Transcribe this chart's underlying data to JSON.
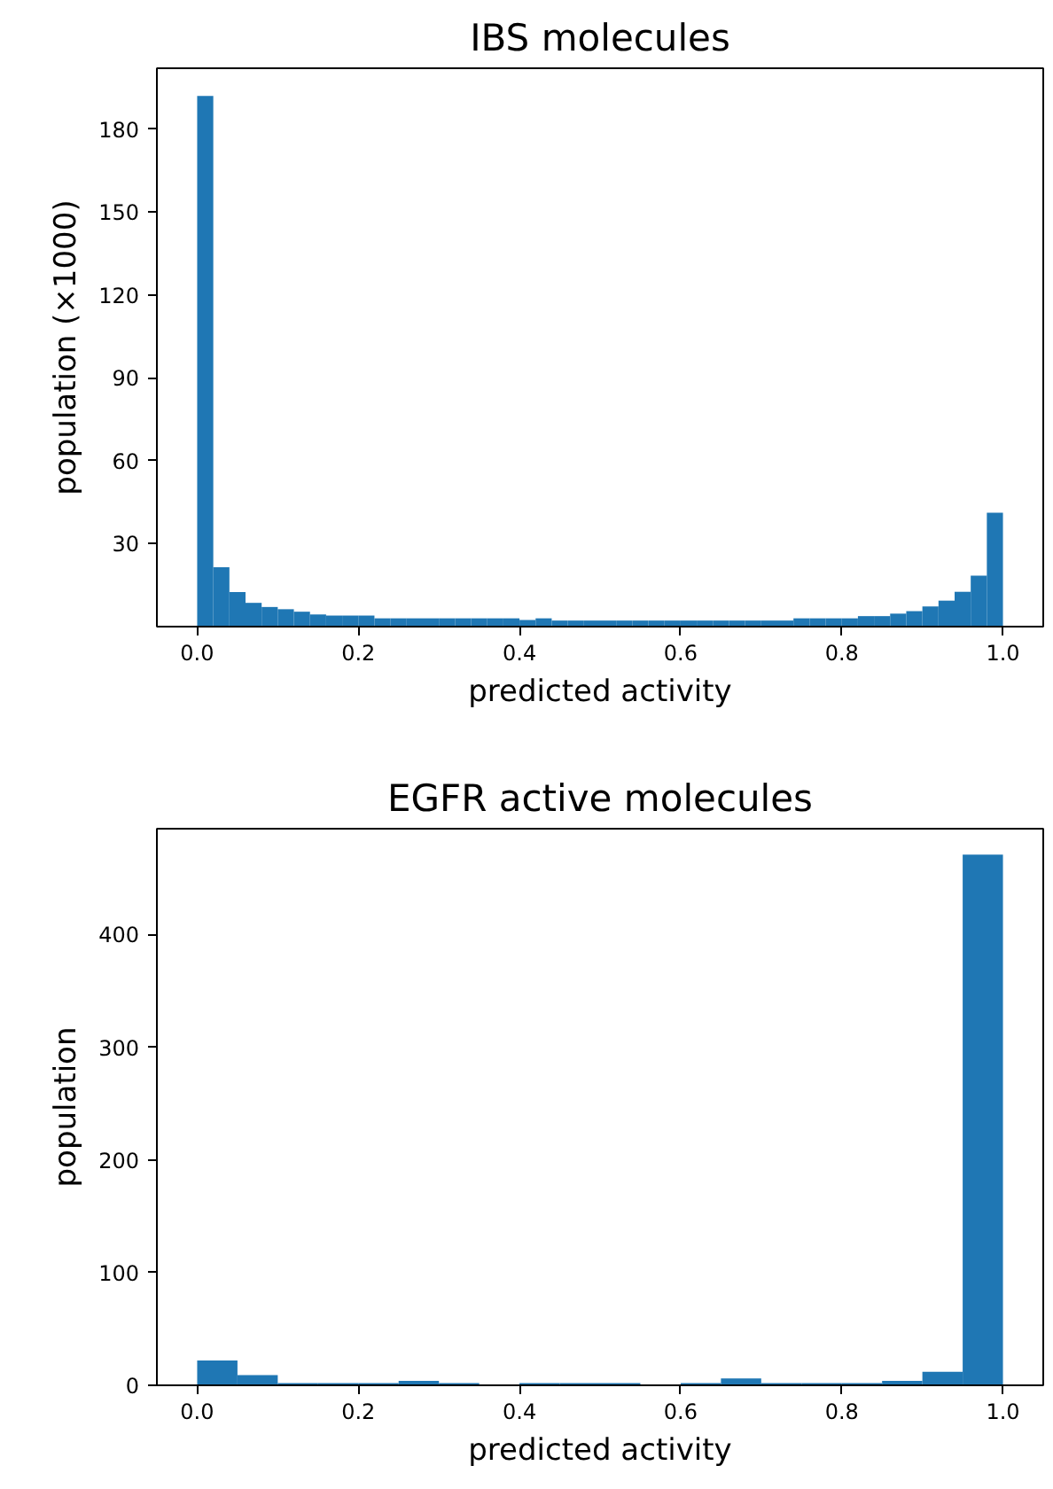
{
  "chart_data": [
    {
      "type": "histogram",
      "title": "IBS molecules",
      "xlabel": "predicted activity",
      "ylabel": "population (×1000)",
      "color": "#1f77b4",
      "bins": [
        0.0,
        0.02,
        0.04,
        0.06,
        0.08,
        0.1,
        0.12,
        0.14,
        0.16,
        0.18,
        0.2,
        0.22,
        0.24,
        0.26,
        0.28,
        0.3,
        0.32,
        0.34,
        0.36,
        0.38,
        0.4,
        0.42,
        0.44,
        0.46,
        0.48,
        0.5,
        0.52,
        0.54,
        0.56,
        0.58,
        0.6,
        0.62,
        0.64,
        0.66,
        0.68,
        0.7,
        0.72,
        0.74,
        0.76,
        0.78,
        0.8,
        0.82,
        0.84,
        0.86,
        0.88,
        0.9,
        0.92,
        0.94,
        0.96,
        0.98,
        1.0
      ],
      "values": [
        192,
        21.5,
        12.5,
        8.6,
        7.1,
        6.3,
        5.4,
        4.4,
        4,
        4,
        4,
        3,
        3,
        3,
        3,
        3,
        3,
        3,
        3,
        3,
        2.4,
        3,
        2.2,
        2.2,
        2.2,
        2.2,
        2.2,
        2.2,
        2.2,
        2.2,
        2.2,
        2.2,
        2.2,
        2.2,
        2.2,
        2.2,
        2.2,
        3,
        3,
        3,
        3,
        3.8,
        3.8,
        4.7,
        5.6,
        7.3,
        9.4,
        12.6,
        18.4,
        41.2
      ],
      "xlim": [
        -0.05,
        1.05
      ],
      "ylim": [
        0,
        202
      ],
      "xticks": [
        {
          "value": 0.0,
          "label": "0.0"
        },
        {
          "value": 0.2,
          "label": "0.2"
        },
        {
          "value": 0.4,
          "label": "0.4"
        },
        {
          "value": 0.6,
          "label": "0.6"
        },
        {
          "value": 0.8,
          "label": "0.8"
        },
        {
          "value": 1.0,
          "label": "1.0"
        }
      ],
      "yticks": [
        30,
        60,
        90,
        120,
        150,
        180
      ],
      "grid": false
    },
    {
      "type": "histogram",
      "title": "EGFR active molecules",
      "xlabel": "predicted activity",
      "ylabel": "population",
      "color": "#1f77b4",
      "bins": [
        0.0,
        0.05,
        0.1,
        0.15,
        0.2,
        0.25,
        0.3,
        0.35,
        0.4,
        0.45,
        0.5,
        0.55,
        0.6,
        0.65,
        0.7,
        0.75,
        0.8,
        0.85,
        0.9,
        0.95,
        1.0
      ],
      "values": [
        22,
        9,
        2,
        2,
        2,
        4,
        2,
        0,
        2,
        2,
        2,
        0,
        2,
        6,
        2,
        2,
        2,
        4,
        12,
        471
      ],
      "xlim": [
        -0.05,
        1.05
      ],
      "ylim": [
        0,
        494
      ],
      "xticks": [
        {
          "value": 0.0,
          "label": "0.0"
        },
        {
          "value": 0.2,
          "label": "0.2"
        },
        {
          "value": 0.4,
          "label": "0.4"
        },
        {
          "value": 0.6,
          "label": "0.6"
        },
        {
          "value": 0.8,
          "label": "0.8"
        },
        {
          "value": 1.0,
          "label": "1.0"
        }
      ],
      "yticks": [
        0,
        100,
        200,
        300,
        400
      ],
      "grid": false
    }
  ]
}
